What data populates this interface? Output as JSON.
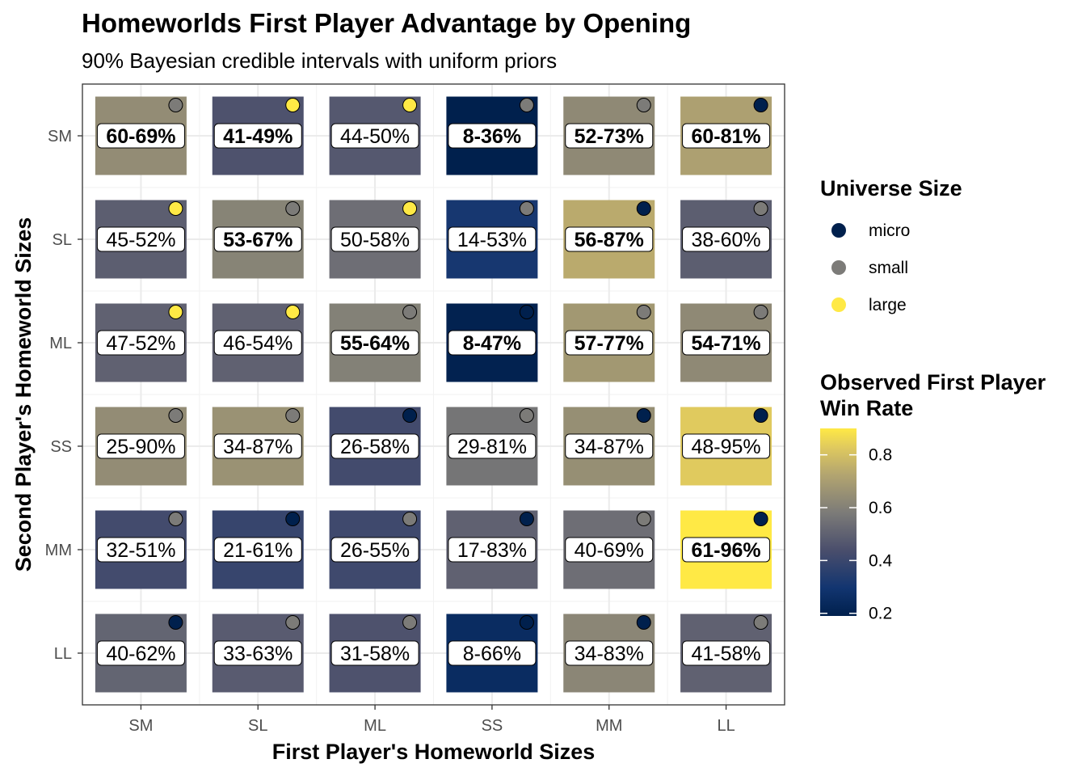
{
  "chart_data": {
    "type": "heatmap",
    "title": "Homeworlds First Player Advantage by Opening",
    "subtitle": "90% Bayesian credible intervals with uniform priors",
    "xlabel": "First Player's Homeworld Sizes",
    "ylabel": "Second Player's Homeworld Sizes",
    "x_categories": [
      "SM",
      "SL",
      "ML",
      "SS",
      "MM",
      "LL"
    ],
    "y_categories": [
      "SM",
      "SL",
      "ML",
      "SS",
      "MM",
      "LL"
    ],
    "grid": true,
    "legend_position": "right",
    "universe_legend": {
      "title": "Universe Size",
      "items": [
        {
          "label": "micro",
          "color": "#00204d"
        },
        {
          "label": "small",
          "color": "#7c7b78"
        },
        {
          "label": "large",
          "color": "#ffe945"
        }
      ]
    },
    "colorbar": {
      "title_lines": [
        "Observed First Player",
        "Win Rate"
      ],
      "range": [
        0.19,
        0.9
      ],
      "ticks": [
        0.2,
        0.4,
        0.6,
        0.8
      ],
      "tick_labels": [
        "0.2",
        "0.4",
        "0.6",
        "0.8"
      ]
    },
    "cells": [
      {
        "x": "SM",
        "y": "SM",
        "label": "60-69%",
        "win_rate": 0.64,
        "significant": true,
        "universe": "small"
      },
      {
        "x": "SL",
        "y": "SM",
        "label": "41-49%",
        "win_rate": 0.45,
        "significant": true,
        "universe": "large"
      },
      {
        "x": "ML",
        "y": "SM",
        "label": "44-50%",
        "win_rate": 0.47,
        "significant": false,
        "universe": "large"
      },
      {
        "x": "SS",
        "y": "SM",
        "label": "8-36%",
        "win_rate": 0.19,
        "significant": true,
        "universe": "small"
      },
      {
        "x": "MM",
        "y": "SM",
        "label": "52-73%",
        "win_rate": 0.63,
        "significant": true,
        "universe": "small"
      },
      {
        "x": "LL",
        "y": "SM",
        "label": "60-81%",
        "win_rate": 0.71,
        "significant": true,
        "universe": "micro"
      },
      {
        "x": "SM",
        "y": "SL",
        "label": "45-52%",
        "win_rate": 0.49,
        "significant": false,
        "universe": "large"
      },
      {
        "x": "SL",
        "y": "SL",
        "label": "53-67%",
        "win_rate": 0.61,
        "significant": true,
        "universe": "small"
      },
      {
        "x": "ML",
        "y": "SL",
        "label": "50-58%",
        "win_rate": 0.54,
        "significant": false,
        "universe": "large"
      },
      {
        "x": "SS",
        "y": "SL",
        "label": "14-53%",
        "win_rate": 0.31,
        "significant": false,
        "universe": "small"
      },
      {
        "x": "MM",
        "y": "SL",
        "label": "56-87%",
        "win_rate": 0.74,
        "significant": true,
        "universe": "micro"
      },
      {
        "x": "LL",
        "y": "SL",
        "label": "38-60%",
        "win_rate": 0.49,
        "significant": false,
        "universe": "small"
      },
      {
        "x": "SM",
        "y": "ML",
        "label": "47-52%",
        "win_rate": 0.5,
        "significant": false,
        "universe": "large"
      },
      {
        "x": "SL",
        "y": "ML",
        "label": "46-54%",
        "win_rate": 0.5,
        "significant": false,
        "universe": "large"
      },
      {
        "x": "ML",
        "y": "ML",
        "label": "55-64%",
        "win_rate": 0.6,
        "significant": true,
        "universe": "small"
      },
      {
        "x": "SS",
        "y": "ML",
        "label": "8-47%",
        "win_rate": 0.2,
        "significant": true,
        "universe": "micro"
      },
      {
        "x": "MM",
        "y": "ML",
        "label": "57-77%",
        "win_rate": 0.68,
        "significant": true,
        "universe": "small"
      },
      {
        "x": "LL",
        "y": "ML",
        "label": "54-71%",
        "win_rate": 0.63,
        "significant": true,
        "universe": "small"
      },
      {
        "x": "SM",
        "y": "SS",
        "label": "25-90%",
        "win_rate": 0.64,
        "significant": false,
        "universe": "small"
      },
      {
        "x": "SL",
        "y": "SS",
        "label": "34-87%",
        "win_rate": 0.66,
        "significant": false,
        "universe": "small"
      },
      {
        "x": "ML",
        "y": "SS",
        "label": "26-58%",
        "win_rate": 0.42,
        "significant": false,
        "universe": "micro"
      },
      {
        "x": "SS",
        "y": "SS",
        "label": "29-81%",
        "win_rate": 0.56,
        "significant": false,
        "universe": "small"
      },
      {
        "x": "MM",
        "y": "SS",
        "label": "34-87%",
        "win_rate": 0.65,
        "significant": false,
        "universe": "micro"
      },
      {
        "x": "LL",
        "y": "SS",
        "label": "48-95%",
        "win_rate": 0.83,
        "significant": false,
        "universe": "micro"
      },
      {
        "x": "SM",
        "y": "MM",
        "label": "32-51%",
        "win_rate": 0.42,
        "significant": false,
        "universe": "small"
      },
      {
        "x": "SL",
        "y": "MM",
        "label": "21-61%",
        "win_rate": 0.39,
        "significant": false,
        "universe": "micro"
      },
      {
        "x": "ML",
        "y": "MM",
        "label": "26-55%",
        "win_rate": 0.41,
        "significant": false,
        "universe": "small"
      },
      {
        "x": "SS",
        "y": "MM",
        "label": "17-83%",
        "win_rate": 0.5,
        "significant": false,
        "universe": "micro"
      },
      {
        "x": "MM",
        "y": "MM",
        "label": "40-69%",
        "win_rate": 0.54,
        "significant": false,
        "universe": "small"
      },
      {
        "x": "LL",
        "y": "MM",
        "label": "61-96%",
        "win_rate": 0.9,
        "significant": true,
        "universe": "micro"
      },
      {
        "x": "SM",
        "y": "LL",
        "label": "40-62%",
        "win_rate": 0.51,
        "significant": false,
        "universe": "micro"
      },
      {
        "x": "SL",
        "y": "LL",
        "label": "33-63%",
        "win_rate": 0.48,
        "significant": false,
        "universe": "small"
      },
      {
        "x": "ML",
        "y": "LL",
        "label": "31-58%",
        "win_rate": 0.45,
        "significant": false,
        "universe": "small"
      },
      {
        "x": "SS",
        "y": "LL",
        "label": "8-66%",
        "win_rate": 0.25,
        "significant": false,
        "universe": "micro"
      },
      {
        "x": "MM",
        "y": "LL",
        "label": "34-83%",
        "win_rate": 0.62,
        "significant": false,
        "universe": "micro"
      },
      {
        "x": "LL",
        "y": "LL",
        "label": "41-58%",
        "win_rate": 0.5,
        "significant": false,
        "universe": "small"
      }
    ]
  }
}
